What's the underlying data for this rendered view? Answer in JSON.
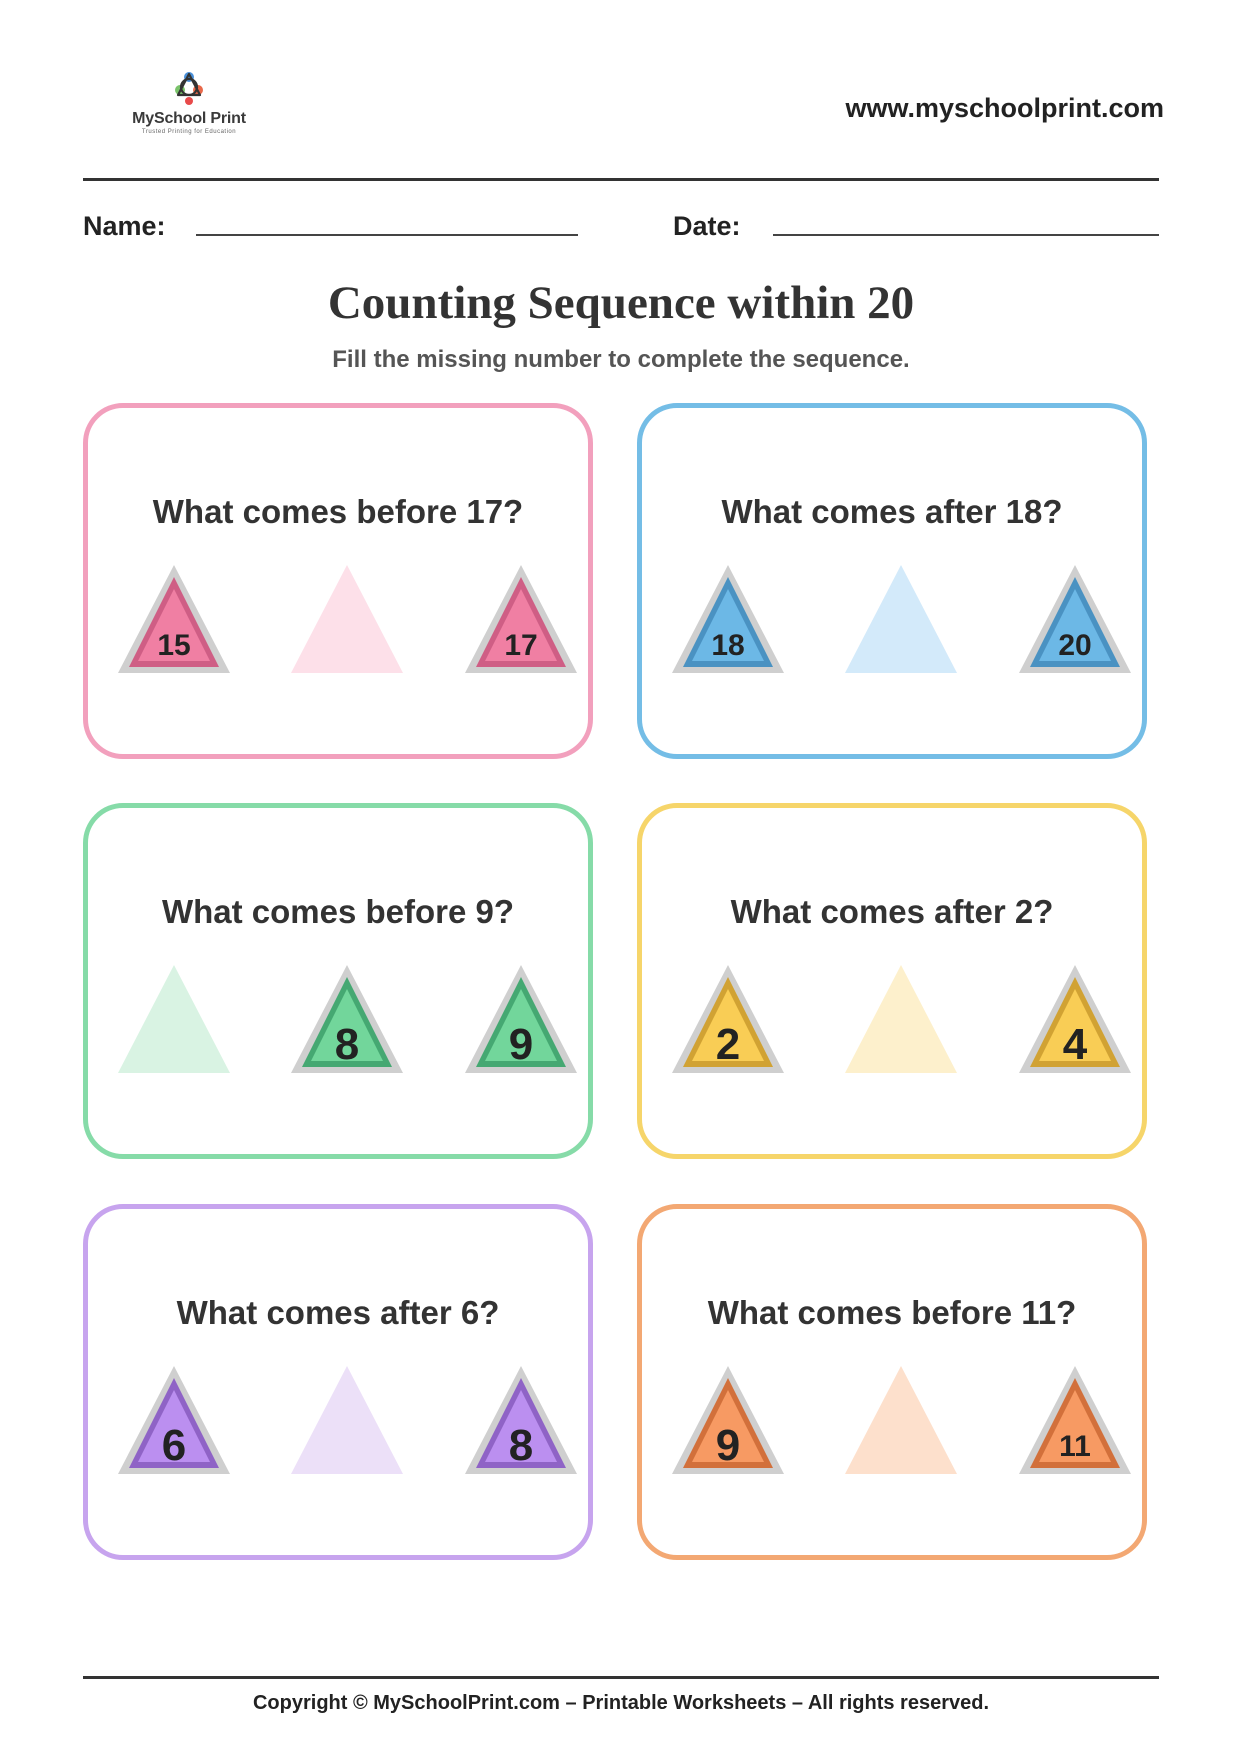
{
  "header": {
    "logo_name": "MySchool Print",
    "logo_tagline": "Trusted Printing for Education",
    "website": "www.myschoolprint.com"
  },
  "fields": {
    "name_label": "Name:",
    "date_label": "Date:"
  },
  "title": "Counting Sequence within 20",
  "subtitle": "Fill the missing number to complete the sequence.",
  "cards": [
    {
      "question": "What comes before 17?",
      "numbers": [
        "15",
        "",
        "17"
      ],
      "border": "#f2a0bd",
      "fill": "#f07fa3",
      "stroke": "#cf5e85",
      "light": "#fde0e9"
    },
    {
      "question": "What comes after 18?",
      "numbers": [
        "18",
        "",
        "20"
      ],
      "border": "#74bde6",
      "fill": "#6cb8e6",
      "stroke": "#4a92c2",
      "light": "#d3eafa"
    },
    {
      "question": "What comes before 9?",
      "numbers": [
        "",
        "8",
        "9"
      ],
      "border": "#86dba8",
      "fill": "#72d69b",
      "stroke": "#45a872",
      "light": "#d9f3e3"
    },
    {
      "question": "What comes after 2?",
      "numbers": [
        "2",
        "",
        "4"
      ],
      "border": "#f6d56a",
      "fill": "#f9cd55",
      "stroke": "#d1a233",
      "light": "#fdf0cc"
    },
    {
      "question": "What comes after 6?",
      "numbers": [
        "6",
        "",
        "8"
      ],
      "border": "#c7a4ee",
      "fill": "#bb8ff0",
      "stroke": "#8f63c6",
      "light": "#ece0f8"
    },
    {
      "question": "What comes before 11?",
      "numbers": [
        "9",
        "",
        "11"
      ],
      "border": "#f3a873",
      "fill": "#f79a63",
      "stroke": "#d2703b",
      "light": "#fde0cc"
    }
  ],
  "footer": "Copyright © MySchoolPrint.com – Printable Worksheets – All rights reserved."
}
